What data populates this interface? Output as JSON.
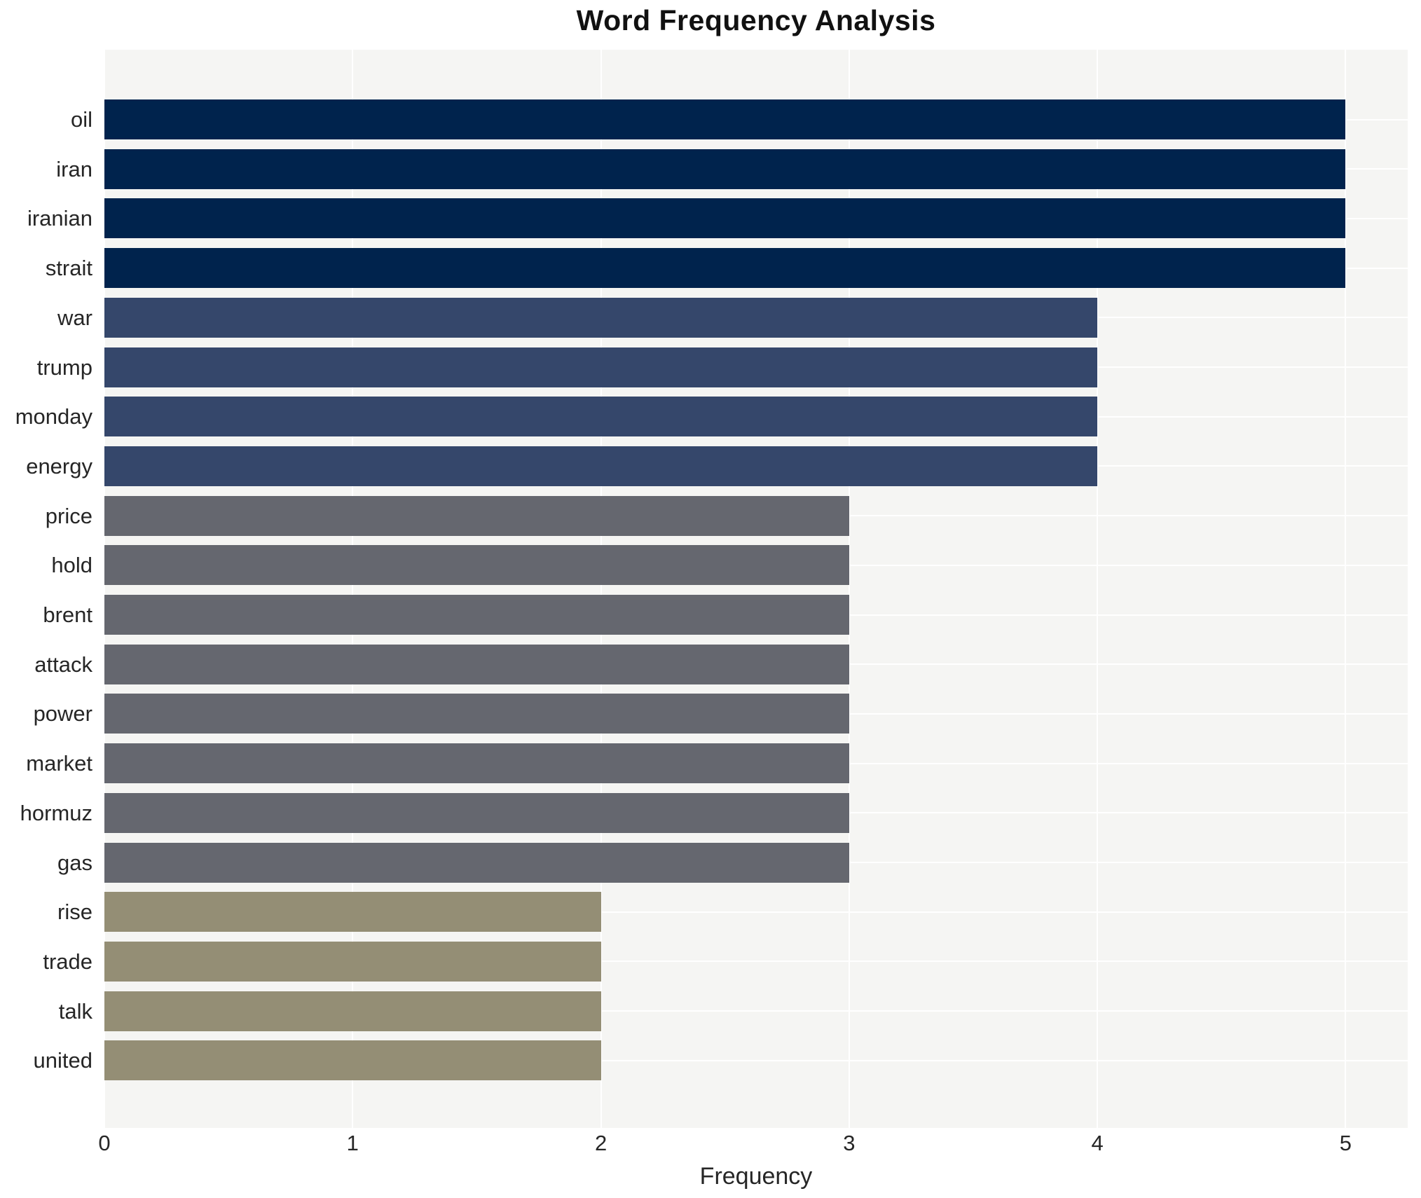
{
  "chart_data": {
    "type": "bar",
    "orientation": "horizontal",
    "title": "Word Frequency Analysis",
    "xlabel": "Frequency",
    "ylabel": "",
    "categories": [
      "oil",
      "iran",
      "iranian",
      "strait",
      "war",
      "trump",
      "monday",
      "energy",
      "price",
      "hold",
      "brent",
      "attack",
      "power",
      "market",
      "hormuz",
      "gas",
      "rise",
      "trade",
      "talk",
      "united"
    ],
    "values": [
      5,
      5,
      5,
      5,
      4,
      4,
      4,
      4,
      3,
      3,
      3,
      3,
      3,
      3,
      3,
      3,
      2,
      2,
      2,
      2
    ],
    "xticks": [
      0,
      1,
      2,
      3,
      4,
      5
    ],
    "xlim": [
      0,
      5.25
    ],
    "grid": "white gridlines on light-gray plot background; vertical at xticks, horizontal at category centers",
    "legend_position": "none",
    "value_colors": {
      "5": "#00234d",
      "4": "#35476b",
      "3": "#65676f",
      "2": "#948e75"
    },
    "plot_bg": "#f5f5f3",
    "figure_bg": "#ffffff",
    "text_color": "#262626"
  }
}
